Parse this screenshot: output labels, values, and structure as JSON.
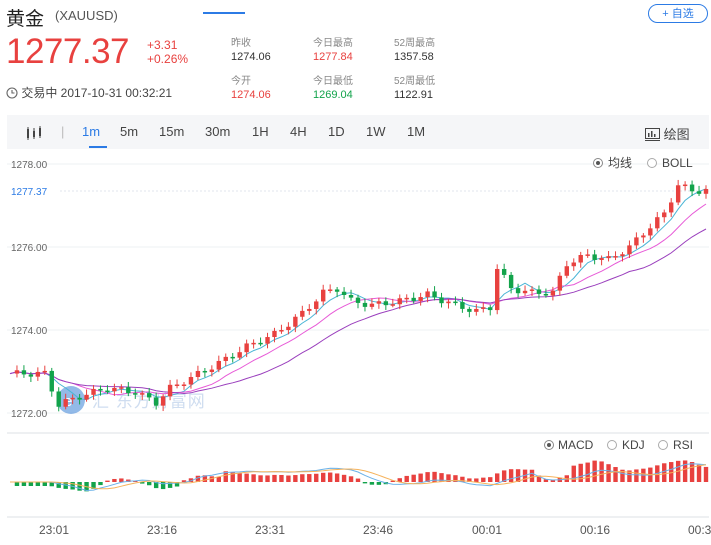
{
  "header": {
    "name": "黄金",
    "code": "(XAUUSD)",
    "add_watch_label": "+ 自选"
  },
  "quote": {
    "price": "1277.37",
    "change": "+3.31",
    "change_pct": "+0.26%",
    "status": "交易中 2017-10-31 00:32:21"
  },
  "stats": [
    {
      "label": "昨收",
      "value": "1274.06",
      "tone": "neutral"
    },
    {
      "label": "今日最高",
      "value": "1277.84",
      "tone": "red"
    },
    {
      "label": "52周最高",
      "value": "1357.58",
      "tone": "neutral"
    },
    {
      "label": "今开",
      "value": "1274.06",
      "tone": "red"
    },
    {
      "label": "今日最低",
      "value": "1269.04",
      "tone": "green"
    },
    {
      "label": "52周最低",
      "value": "1122.91",
      "tone": "neutral"
    }
  ],
  "toolbar": {
    "periods": [
      "1m",
      "5m",
      "15m",
      "30m",
      "1H",
      "4H",
      "1D",
      "1W",
      "1M"
    ],
    "active_period": "1m",
    "draw_label": "绘图"
  },
  "main_chart": {
    "indicators": [
      {
        "label": "均线",
        "selected": true
      },
      {
        "label": "BOLL",
        "selected": false
      }
    ],
    "y_ticks": [
      "1278.00",
      "1276.00",
      "1274.00",
      "1272.00"
    ],
    "current_label": "1277.37",
    "watermark": "汇 东方财富网"
  },
  "sub_chart": {
    "indicators": [
      {
        "label": "MACD",
        "selected": true
      },
      {
        "label": "KDJ",
        "selected": false
      },
      {
        "label": "RSI",
        "selected": false
      }
    ]
  },
  "chart_data": {
    "type": "candlestick",
    "x_ticks": [
      "23:01",
      "23:16",
      "23:31",
      "23:46",
      "00:01",
      "00:16",
      "00:3"
    ],
    "ylim": [
      1271.6,
      1278.2
    ],
    "current_price": 1277.37,
    "colors": {
      "up": "#e8413f",
      "down": "#12a34b",
      "ma1": "#4bb5d6",
      "ma2": "#e75ad7",
      "ma3": "#9a3fbd",
      "dif": "#6ab1e8",
      "dea": "#f6b35c"
    }
  }
}
